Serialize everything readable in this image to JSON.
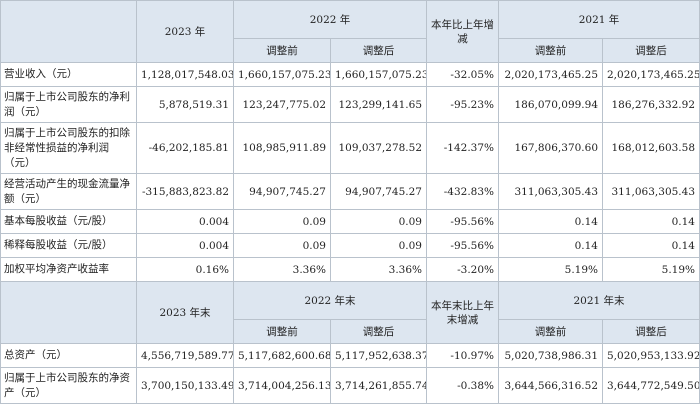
{
  "section1": {
    "header": {
      "year_2023": "2023 年",
      "year_2022": "2022 年",
      "change": "本年比上年增减",
      "year_2021": "2021 年",
      "before": "调整前",
      "after": "调整后"
    },
    "rows": [
      {
        "label": "营业收入（元）",
        "v2023": "1,128,017,548.03",
        "v2022_before": "1,660,157,075.23",
        "v2022_after": "1,660,157,075.23",
        "change": "-32.05%",
        "v2021_before": "2,020,173,465.25",
        "v2021_after": "2,020,173,465.25"
      },
      {
        "label": "归属于上市公司股东的净利润（元）",
        "v2023": "5,878,519.31",
        "v2022_before": "123,247,775.02",
        "v2022_after": "123,299,141.65",
        "change": "-95.23%",
        "v2021_before": "186,070,099.94",
        "v2021_after": "186,276,332.92"
      },
      {
        "label": "归属于上市公司股东的扣除非经常性损益的净利润（元）",
        "v2023": "-46,202,185.81",
        "v2022_before": "108,985,911.89",
        "v2022_after": "109,037,278.52",
        "change": "-142.37%",
        "v2021_before": "167,806,370.60",
        "v2021_after": "168,012,603.58"
      },
      {
        "label": "经营活动产生的现金流量净额（元）",
        "v2023": "-315,883,823.82",
        "v2022_before": "94,907,745.27",
        "v2022_after": "94,907,745.27",
        "change": "-432.83%",
        "v2021_before": "311,063,305.43",
        "v2021_after": "311,063,305.43"
      },
      {
        "label": "基本每股收益（元/股）",
        "v2023": "0.004",
        "v2022_before": "0.09",
        "v2022_after": "0.09",
        "change": "-95.56%",
        "v2021_before": "0.14",
        "v2021_after": "0.14"
      },
      {
        "label": "稀释每股收益（元/股）",
        "v2023": "0.004",
        "v2022_before": "0.09",
        "v2022_after": "0.09",
        "change": "-95.56%",
        "v2021_before": "0.14",
        "v2021_after": "0.14"
      },
      {
        "label": "加权平均净资产收益率",
        "v2023": "0.16%",
        "v2022_before": "3.36%",
        "v2022_after": "3.36%",
        "change": "-3.20%",
        "v2021_before": "5.19%",
        "v2021_after": "5.19%"
      }
    ]
  },
  "section2": {
    "header": {
      "year_2023": "2023 年末",
      "year_2022": "2022 年末",
      "change": "本年末比上年末增减",
      "year_2021": "2021 年末",
      "before": "调整前",
      "after": "调整后"
    },
    "rows": [
      {
        "label": "总资产（元）",
        "v2023": "4,556,719,589.77",
        "v2022_before": "5,117,682,600.68",
        "v2022_after": "5,117,952,638.37",
        "change": "-10.97%",
        "v2021_before": "5,020,738,986.31",
        "v2021_after": "5,020,953,133.92"
      },
      {
        "label": "归属于上市公司股东的净资产（元）",
        "v2023": "3,700,150,133.49",
        "v2022_before": "3,714,004,256.13",
        "v2022_after": "3,714,261,855.74",
        "change": "-0.38%",
        "v2021_before": "3,644,566,316.52",
        "v2021_after": "3,644,772,549.50"
      }
    ]
  }
}
